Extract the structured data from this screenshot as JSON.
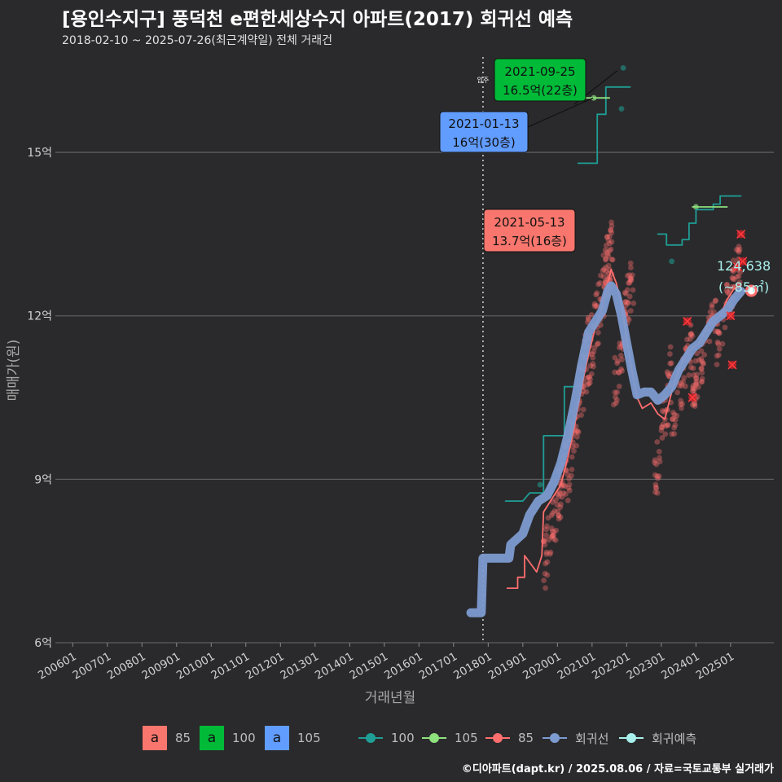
{
  "title": "[용인수지구] 풍덕천 e편한세상수지 아파트(2017) 회귀선 예측",
  "subtitle": "2018-02-10 ~ 2025-07-26(최근계약일) 전체 거래건",
  "caption": "©디아파트(dapt.kr) / 2025.08.06 / 자료=국토교통부 실거래가",
  "colors": {
    "background": "#2a2a2c",
    "grid": "#5d5d60",
    "s85": "#ff6e6e",
    "s100": "#1f9e95",
    "s105": "#8fe07e",
    "regression": "#7d9bd0",
    "forecast": "#a8f0ec",
    "box85": "#f8766d",
    "box100": "#00ba38",
    "box105": "#619cff"
  },
  "chart_data": {
    "type": "scatter",
    "xlabel": "거래년월",
    "ylabel": "매매가(원)",
    "x_range": [
      2005.5,
      2026.25
    ],
    "y_range": [
      6.0,
      16.9
    ],
    "y_ticks": [
      {
        "value": 6,
        "label": "6억"
      },
      {
        "value": 9,
        "label": "9억"
      },
      {
        "value": 12,
        "label": "12억"
      },
      {
        "value": 15,
        "label": "15억"
      }
    ],
    "x_ticks": [
      "200601",
      "200701",
      "200801",
      "200901",
      "201001",
      "201101",
      "201201",
      "201301",
      "201401",
      "201501",
      "201601",
      "201701",
      "201801",
      "201901",
      "202001",
      "202101",
      "202201",
      "202301",
      "202401",
      "202501"
    ],
    "move_in": {
      "x": 2017.85,
      "label": "입주"
    },
    "series": [
      {
        "name": "100",
        "kind": "step",
        "color_key": "s100",
        "points": [
          [
            2018.5,
            8.6
          ],
          [
            2019.0,
            8.6
          ],
          [
            2019.2,
            8.75
          ],
          [
            2019.6,
            8.75
          ],
          [
            2019.6,
            9.8
          ],
          [
            2020.2,
            9.8
          ],
          [
            2020.2,
            10.7
          ],
          [
            2020.6,
            10.7
          ]
        ]
      },
      {
        "name": "100",
        "kind": "step",
        "color_key": "s100",
        "points": [
          [
            2020.6,
            14.8
          ],
          [
            2021.15,
            14.8
          ],
          [
            2021.15,
            15.7
          ],
          [
            2021.4,
            15.7
          ],
          [
            2021.4,
            16.2
          ],
          [
            2022.1,
            16.2
          ]
        ]
      },
      {
        "name": "100",
        "kind": "step",
        "color_key": "s100",
        "points": [
          [
            2022.9,
            13.5
          ],
          [
            2023.15,
            13.5
          ],
          [
            2023.15,
            13.3
          ],
          [
            2023.6,
            13.3
          ],
          [
            2023.6,
            13.4
          ],
          [
            2023.8,
            13.4
          ],
          [
            2023.8,
            13.7
          ],
          [
            2024.0,
            13.7
          ],
          [
            2024.0,
            13.95
          ],
          [
            2024.5,
            13.95
          ],
          [
            2024.5,
            14.05
          ],
          [
            2024.7,
            14.05
          ],
          [
            2024.7,
            14.2
          ],
          [
            2025.3,
            14.2
          ]
        ]
      },
      {
        "name": "105",
        "kind": "step",
        "color_key": "s105",
        "points": [
          [
            2020.6,
            16.0
          ],
          [
            2021.5,
            16.0
          ]
        ]
      },
      {
        "name": "105",
        "kind": "step",
        "color_key": "s105",
        "points": [
          [
            2023.9,
            14.0
          ],
          [
            2024.9,
            14.0
          ]
        ]
      },
      {
        "name": "85",
        "kind": "line",
        "color_key": "s85",
        "points": [
          [
            2018.55,
            7.0
          ],
          [
            2018.85,
            7.0
          ],
          [
            2018.85,
            7.2
          ],
          [
            2019.05,
            7.2
          ],
          [
            2019.05,
            7.6
          ],
          [
            2019.4,
            7.3
          ],
          [
            2019.55,
            7.6
          ],
          [
            2019.6,
            8.4
          ],
          [
            2019.9,
            8.7
          ],
          [
            2020.1,
            8.9
          ],
          [
            2020.3,
            9.4
          ],
          [
            2020.5,
            10.0
          ],
          [
            2020.7,
            10.7
          ],
          [
            2020.9,
            11.3
          ],
          [
            2021.1,
            11.8
          ],
          [
            2021.3,
            12.2
          ],
          [
            2021.45,
            12.6
          ],
          [
            2021.55,
            12.85
          ],
          [
            2021.7,
            12.6
          ],
          [
            2021.85,
            12.2
          ],
          [
            2022.0,
            11.6
          ],
          [
            2022.15,
            11.0
          ],
          [
            2022.3,
            10.5
          ],
          [
            2022.45,
            10.3
          ],
          [
            2022.7,
            10.4
          ],
          [
            2022.9,
            10.2
          ],
          [
            2023.1,
            10.1
          ],
          [
            2023.3,
            10.6
          ],
          [
            2023.5,
            11.0
          ],
          [
            2023.7,
            11.3
          ],
          [
            2023.9,
            11.4
          ],
          [
            2024.1,
            11.5
          ],
          [
            2024.3,
            11.8
          ],
          [
            2024.5,
            11.9
          ],
          [
            2024.7,
            12.0
          ],
          [
            2024.9,
            12.3
          ],
          [
            2025.1,
            12.5
          ],
          [
            2025.3,
            12.55
          ]
        ]
      },
      {
        "name": "회귀선",
        "kind": "line",
        "color_key": "regression",
        "points": [
          [
            2017.5,
            6.55
          ],
          [
            2017.75,
            6.55
          ],
          [
            2017.8,
            6.55
          ],
          [
            2017.85,
            7.55
          ],
          [
            2018.6,
            7.55
          ],
          [
            2018.65,
            7.8
          ],
          [
            2019.0,
            8.0
          ],
          [
            2019.2,
            8.35
          ],
          [
            2019.45,
            8.6
          ],
          [
            2019.7,
            8.7
          ],
          [
            2019.9,
            8.95
          ],
          [
            2020.1,
            9.3
          ],
          [
            2020.3,
            9.8
          ],
          [
            2020.5,
            10.4
          ],
          [
            2020.7,
            11.1
          ],
          [
            2020.9,
            11.7
          ],
          [
            2021.1,
            11.9
          ],
          [
            2021.3,
            12.1
          ],
          [
            2021.45,
            12.45
          ],
          [
            2021.55,
            12.55
          ],
          [
            2021.7,
            12.4
          ],
          [
            2021.85,
            12.0
          ],
          [
            2022.0,
            11.5
          ],
          [
            2022.15,
            11.0
          ],
          [
            2022.3,
            10.55
          ],
          [
            2022.5,
            10.6
          ],
          [
            2022.7,
            10.6
          ],
          [
            2022.9,
            10.45
          ],
          [
            2023.1,
            10.55
          ],
          [
            2023.3,
            10.7
          ],
          [
            2023.5,
            11.0
          ],
          [
            2023.7,
            11.2
          ],
          [
            2023.9,
            11.4
          ],
          [
            2024.1,
            11.5
          ],
          [
            2024.3,
            11.7
          ],
          [
            2024.5,
            11.9
          ],
          [
            2024.7,
            12.0
          ],
          [
            2024.9,
            12.1
          ],
          [
            2025.1,
            12.3
          ],
          [
            2025.3,
            12.45
          ]
        ]
      }
    ],
    "scatter_clusters": [
      {
        "x0": 2019.6,
        "x1": 2020.3,
        "y0": 7.4,
        "y1": 9.4,
        "n": 70
      },
      {
        "x0": 2020.3,
        "x1": 2020.9,
        "y0": 9.2,
        "y1": 11.4,
        "n": 70
      },
      {
        "x0": 2020.9,
        "x1": 2021.6,
        "y0": 11.2,
        "y1": 13.4,
        "n": 90
      },
      {
        "x0": 2021.6,
        "x1": 2022.2,
        "y0": 10.6,
        "y1": 12.8,
        "n": 60
      },
      {
        "x0": 2022.8,
        "x1": 2023.3,
        "y0": 8.9,
        "y1": 11.0,
        "n": 45
      },
      {
        "x0": 2023.3,
        "x1": 2023.9,
        "y0": 10.0,
        "y1": 11.6,
        "n": 45
      },
      {
        "x0": 2023.9,
        "x1": 2024.6,
        "y0": 10.6,
        "y1": 12.2,
        "n": 60
      },
      {
        "x0": 2024.6,
        "x1": 2025.3,
        "y0": 11.5,
        "y1": 13.1,
        "n": 60
      }
    ],
    "cross_markers": [
      [
        2025.3,
        13.5
      ],
      [
        2025.35,
        13.0
      ],
      [
        2025.2,
        12.9
      ],
      [
        2023.75,
        11.9
      ],
      [
        2025.05,
        11.1
      ],
      [
        2025.0,
        12.0
      ],
      [
        2023.9,
        10.5
      ]
    ],
    "forecast_point": {
      "x": 2025.6,
      "y": 12.46
    },
    "annotations": [
      {
        "date": "2021-09-25",
        "price": "16.5억(22층)",
        "color_key": "box100",
        "text_color": "#111111",
        "x": 2021.73,
        "y": 16.5
      },
      {
        "date": "2021-01-13",
        "price": "16억(30층)",
        "color_key": "box105",
        "text_color": "#111111",
        "x": 2021.03,
        "y": 16.0
      },
      {
        "date": "2021-05-13",
        "price": "13.7억(16층)",
        "color_key": "box85",
        "text_color": "#111111",
        "x": 2021.37,
        "y": 13.7
      }
    ],
    "forecast_label": {
      "value": "124,638",
      "area": "(~85㎡)"
    }
  },
  "legend": {
    "boxes": [
      {
        "glyph": "a",
        "label": "85",
        "color_key": "box85"
      },
      {
        "glyph": "a",
        "label": "100",
        "color_key": "box100"
      },
      {
        "glyph": "a",
        "label": "105",
        "color_key": "box105"
      }
    ],
    "lines": [
      {
        "label": "100",
        "color_key": "s100"
      },
      {
        "label": "105",
        "color_key": "s105"
      },
      {
        "label": "85",
        "color_key": "s85"
      },
      {
        "label": "회귀선",
        "color_key": "regression"
      },
      {
        "label": "회귀예측",
        "color_key": "forecast"
      }
    ]
  }
}
